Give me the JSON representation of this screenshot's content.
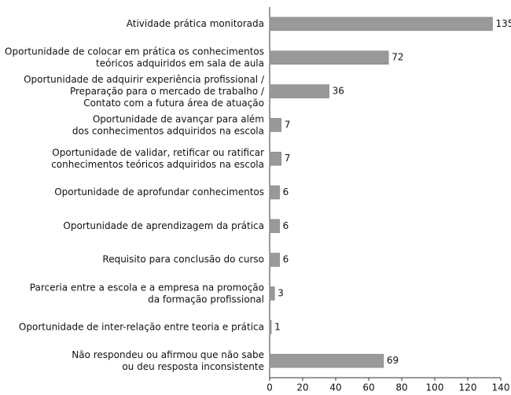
{
  "chart_data": {
    "type": "hbar",
    "categories": [
      "Atividade prática monitorada",
      "Oportunidade de colocar em prática os conhecimentos\nteóricos adquiridos em sala de aula",
      "Oportunidade de adquirir experiência profissional /\nPreparação para o mercado de trabalho /\nContato com a futura área de atuação",
      "Oportunidade de avançar para além\ndos conhecimentos adquiridos na escola",
      "Oportunidade de validar, retificar ou ratificar\nconhecimentos teóricos adquiridos na escola",
      "Oportunidade de aprofundar conhecimentos",
      "Oportunidade de aprendizagem da prática",
      "Requisito para conclusão do curso",
      "Parceria entre a escola e a empresa na promoção\nda formação profissional",
      "Oportunidade de inter-relação entre teoria e prática",
      "Não respondeu ou afirmou que não sabe\nou deu resposta inconsistente"
    ],
    "values": [
      135,
      72,
      36,
      7,
      7,
      6,
      6,
      6,
      3,
      1,
      69
    ],
    "color": "#999999",
    "xlim": [
      0,
      140
    ],
    "xticks": [
      0,
      20,
      40,
      60,
      80,
      100,
      120,
      140
    ]
  }
}
